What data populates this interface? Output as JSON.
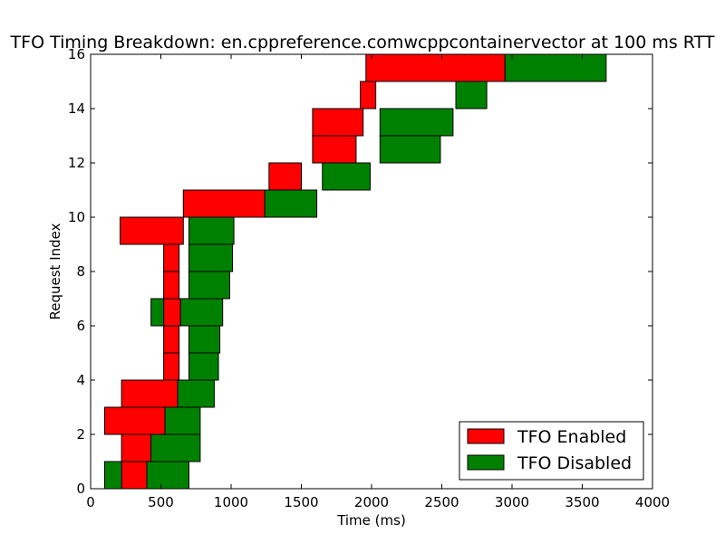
{
  "chart_data": {
    "type": "bar",
    "orientation": "horizontal-intervals",
    "title": "TFO Timing Breakdown: en.cppreference.comwcppcontainervector at 100 ms RTT",
    "xlabel": "Time (ms)",
    "ylabel": "Request Index",
    "xlim": [
      0,
      4000
    ],
    "ylim": [
      0,
      16
    ],
    "xticks": [
      0,
      500,
      1000,
      1500,
      2000,
      2500,
      3000,
      3500,
      4000
    ],
    "yticks": [
      0,
      2,
      4,
      6,
      8,
      10,
      12,
      14,
      16
    ],
    "grid": false,
    "legend_position": "bottom-right",
    "series": [
      {
        "name": "TFO Enabled",
        "color": "#ff0000",
        "intervals": [
          {
            "index": 0,
            "start": 220,
            "end": 400
          },
          {
            "index": 1,
            "start": 220,
            "end": 430
          },
          {
            "index": 2,
            "start": 100,
            "end": 530
          },
          {
            "index": 3,
            "start": 220,
            "end": 620
          },
          {
            "index": 4,
            "start": 520,
            "end": 630
          },
          {
            "index": 5,
            "start": 520,
            "end": 630
          },
          {
            "index": 6,
            "start": 520,
            "end": 640
          },
          {
            "index": 7,
            "start": 520,
            "end": 630
          },
          {
            "index": 8,
            "start": 520,
            "end": 630
          },
          {
            "index": 9,
            "start": 210,
            "end": 660
          },
          {
            "index": 10,
            "start": 660,
            "end": 1240
          },
          {
            "index": 11,
            "start": 1270,
            "end": 1500
          },
          {
            "index": 12,
            "start": 1580,
            "end": 1890
          },
          {
            "index": 13,
            "start": 1580,
            "end": 1940
          },
          {
            "index": 14,
            "start": 1920,
            "end": 2030
          },
          {
            "index": 15,
            "start": 1960,
            "end": 2950
          }
        ]
      },
      {
        "name": "TFO Disabled",
        "color": "#008000",
        "intervals": [
          {
            "index": 0,
            "start": 100,
            "end": 220
          },
          {
            "index": 0,
            "start": 400,
            "end": 700
          },
          {
            "index": 1,
            "start": 430,
            "end": 780
          },
          {
            "index": 2,
            "start": 530,
            "end": 780
          },
          {
            "index": 3,
            "start": 620,
            "end": 880
          },
          {
            "index": 4,
            "start": 700,
            "end": 910
          },
          {
            "index": 5,
            "start": 700,
            "end": 920
          },
          {
            "index": 6,
            "start": 430,
            "end": 520
          },
          {
            "index": 6,
            "start": 640,
            "end": 940
          },
          {
            "index": 7,
            "start": 700,
            "end": 990
          },
          {
            "index": 8,
            "start": 700,
            "end": 1010
          },
          {
            "index": 9,
            "start": 700,
            "end": 1020
          },
          {
            "index": 10,
            "start": 1240,
            "end": 1610
          },
          {
            "index": 11,
            "start": 1650,
            "end": 1990
          },
          {
            "index": 12,
            "start": 2060,
            "end": 2490
          },
          {
            "index": 13,
            "start": 2060,
            "end": 2580
          },
          {
            "index": 14,
            "start": 2600,
            "end": 2820
          },
          {
            "index": 15,
            "start": 2950,
            "end": 3670
          }
        ]
      }
    ]
  }
}
